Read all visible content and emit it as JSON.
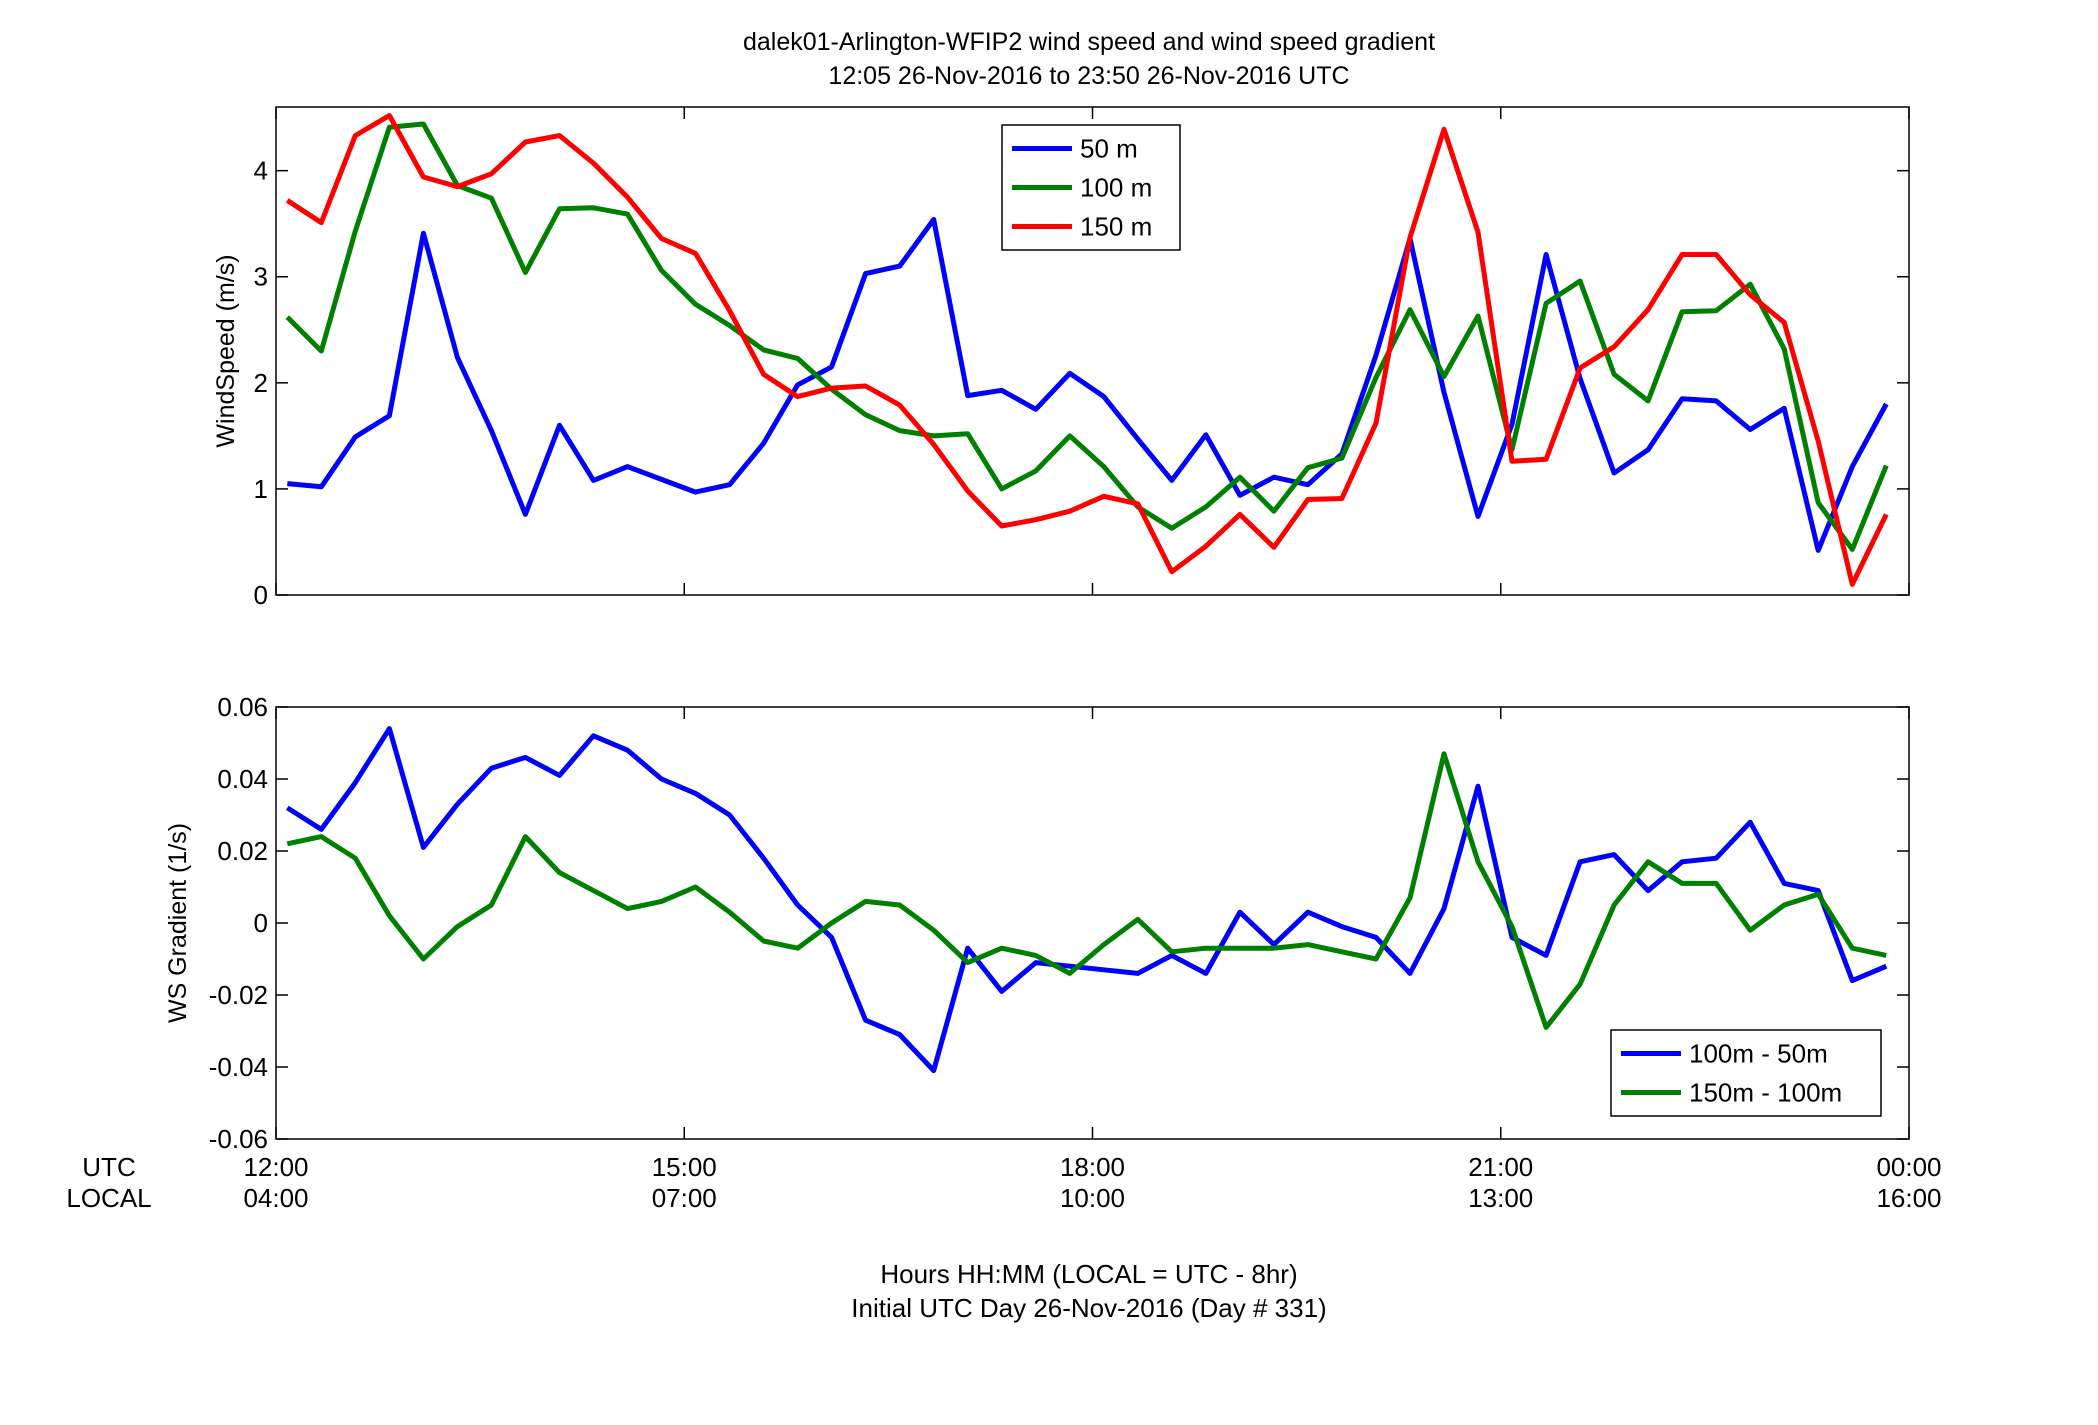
{
  "figure": {
    "title_line1": "dalek01-Arlington-WFIP2  wind speed and wind speed gradient",
    "title_line2": "12:05 26-Nov-2016 to 23:50 26-Nov-2016  UTC",
    "row_label_utc": "UTC",
    "row_label_local": "LOCAL",
    "footer_line1": "Hours HH:MM  (LOCAL = UTC - 8hr)",
    "footer_line2": "Initial UTC Day 26-Nov-2016 (Day # 331)"
  },
  "chart_data": [
    {
      "type": "line",
      "title": "",
      "xlabel": "",
      "ylabel": "WindSpeed (m/s)",
      "xlim": [
        12.0,
        24.0
      ],
      "ylim": [
        0,
        4.6
      ],
      "yticks": [
        0,
        1,
        2,
        3,
        4
      ],
      "grid": false,
      "legend_position": "top-center",
      "x_hours": [
        12.083,
        12.333,
        12.583,
        12.833,
        13.083,
        13.333,
        13.583,
        13.833,
        14.083,
        14.333,
        14.583,
        14.833,
        15.083,
        15.333,
        15.583,
        15.833,
        16.083,
        16.333,
        16.583,
        16.833,
        17.083,
        17.333,
        17.583,
        17.833,
        18.083,
        18.333,
        18.583,
        18.833,
        19.083,
        19.333,
        19.583,
        19.833,
        20.083,
        20.333,
        20.583,
        20.833,
        21.083,
        21.333,
        21.583,
        21.833,
        22.083,
        22.333,
        22.583,
        22.833,
        23.083,
        23.333,
        23.583,
        23.833
      ],
      "series": [
        {
          "name": "50 m",
          "color": "#0000ff",
          "values": [
            1.05,
            1.02,
            1.49,
            1.69,
            3.41,
            2.24,
            1.55,
            0.76,
            1.6,
            1.08,
            1.21,
            1.09,
            0.97,
            1.04,
            1.43,
            1.98,
            2.15,
            3.03,
            3.1,
            3.54,
            1.88,
            1.93,
            1.75,
            2.09,
            1.87,
            1.47,
            1.08,
            1.51,
            0.94,
            1.11,
            1.04,
            1.33,
            2.26,
            3.36,
            1.91,
            0.74,
            1.61,
            3.21,
            2.04,
            1.15,
            1.37,
            1.85,
            1.83,
            1.56,
            1.76,
            0.42,
            1.21,
            1.8
          ]
        },
        {
          "name": "100 m",
          "color": "#008000",
          "values": [
            2.62,
            2.3,
            3.43,
            4.41,
            4.44,
            3.86,
            3.74,
            3.04,
            3.64,
            3.65,
            3.59,
            3.06,
            2.74,
            2.54,
            2.31,
            2.23,
            1.94,
            1.7,
            1.55,
            1.5,
            1.52,
            1.0,
            1.17,
            1.5,
            1.21,
            0.83,
            0.63,
            0.83,
            1.11,
            0.79,
            1.2,
            1.29,
            2.05,
            2.69,
            2.06,
            2.63,
            1.37,
            2.75,
            2.96,
            2.08,
            1.83,
            2.67,
            2.68,
            2.93,
            2.32,
            0.87,
            0.43,
            1.22
          ]
        },
        {
          "name": "150 m",
          "color": "#ff0000",
          "values": [
            3.72,
            3.51,
            4.33,
            4.52,
            3.94,
            3.85,
            3.97,
            4.27,
            4.33,
            4.07,
            3.75,
            3.36,
            3.22,
            2.68,
            2.08,
            1.87,
            1.95,
            1.97,
            1.79,
            1.42,
            0.98,
            0.65,
            0.71,
            0.79,
            0.93,
            0.86,
            0.22,
            0.46,
            0.76,
            0.45,
            0.9,
            0.91,
            1.62,
            3.37,
            4.39,
            3.42,
            1.26,
            1.28,
            2.14,
            2.34,
            2.69,
            3.21,
            3.21,
            2.83,
            2.57,
            1.45,
            0.1,
            0.76
          ]
        }
      ]
    },
    {
      "type": "line",
      "title": "",
      "xlabel": "",
      "ylabel": "WS Gradient (1/s)",
      "xlim": [
        12.0,
        24.0
      ],
      "ylim": [
        -0.06,
        0.06
      ],
      "yticks": [
        -0.06,
        -0.04,
        -0.02,
        0,
        0.02,
        0.04,
        0.06
      ],
      "ytick_labels": [
        "-0.06",
        "-0.04",
        "-0.02",
        "0",
        "0.02",
        "0.04",
        "0.06"
      ],
      "grid": false,
      "legend_position": "bottom-right",
      "x_hours": [
        12.083,
        12.333,
        12.583,
        12.833,
        13.083,
        13.333,
        13.583,
        13.833,
        14.083,
        14.333,
        14.583,
        14.833,
        15.083,
        15.333,
        15.583,
        15.833,
        16.083,
        16.333,
        16.583,
        16.833,
        17.083,
        17.333,
        17.583,
        17.833,
        18.083,
        18.333,
        18.583,
        18.833,
        19.083,
        19.333,
        19.583,
        19.833,
        20.083,
        20.333,
        20.583,
        20.833,
        21.083,
        21.333,
        21.583,
        21.833,
        22.083,
        22.333,
        22.583,
        22.833,
        23.083,
        23.333,
        23.583,
        23.833
      ],
      "series": [
        {
          "name": "100m - 50m",
          "color": "#0000ff",
          "values": [
            0.032,
            0.026,
            0.039,
            0.054,
            0.021,
            0.033,
            0.043,
            0.046,
            0.041,
            0.052,
            0.048,
            0.04,
            0.036,
            0.03,
            0.018,
            0.005,
            -0.004,
            -0.027,
            -0.031,
            -0.041,
            -0.007,
            -0.019,
            -0.011,
            -0.012,
            -0.013,
            -0.014,
            -0.009,
            -0.014,
            0.003,
            -0.006,
            0.003,
            -0.001,
            -0.004,
            -0.014,
            0.004,
            0.038,
            -0.004,
            -0.009,
            0.017,
            0.019,
            0.009,
            0.017,
            0.018,
            0.028,
            0.011,
            0.009,
            -0.016,
            -0.012
          ]
        },
        {
          "name": "150m - 100m",
          "color": "#008000",
          "values": [
            0.022,
            0.024,
            0.018,
            0.002,
            -0.01,
            -0.001,
            0.005,
            0.024,
            0.014,
            0.009,
            0.004,
            0.006,
            0.01,
            0.003,
            -0.005,
            -0.007,
            0.0,
            0.006,
            0.005,
            -0.002,
            -0.011,
            -0.007,
            -0.009,
            -0.014,
            -0.006,
            0.001,
            -0.008,
            -0.007,
            -0.007,
            -0.007,
            -0.006,
            -0.008,
            -0.01,
            0.007,
            0.047,
            0.017,
            -0.001,
            -0.029,
            -0.017,
            0.005,
            0.017,
            0.011,
            0.011,
            -0.002,
            0.005,
            0.008,
            -0.007,
            -0.009
          ]
        }
      ]
    }
  ],
  "x_axis": {
    "ticks": [
      12,
      15,
      18,
      21,
      24
    ],
    "utc_labels": [
      "12:00",
      "15:00",
      "18:00",
      "21:00",
      "00:00"
    ],
    "local_labels": [
      "04:00",
      "07:00",
      "10:00",
      "13:00",
      "16:00"
    ]
  }
}
